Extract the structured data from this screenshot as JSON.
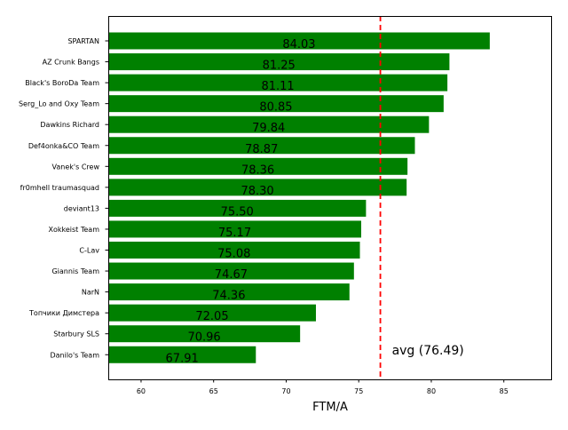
{
  "chart_data": {
    "type": "bar",
    "orientation": "horizontal",
    "categories": [
      "SPARTAN",
      "AZ Crunk Bangs",
      "Black's BoroDa Team",
      "Serg_Lo and Oxy Team",
      "Dawkins Richard",
      "Def4onka&CO Team",
      "Vanek's Crew",
      "fr0mhell traumasquad",
      "deviant13",
      "Xokkeist Team",
      "C-Lav",
      "Giannis Team",
      "NarN",
      "Топчики Димстера",
      "Starbury SLS",
      "Danilo's Team"
    ],
    "values": [
      84.03,
      81.25,
      81.11,
      80.85,
      79.84,
      78.87,
      78.36,
      78.3,
      75.5,
      75.17,
      75.08,
      74.67,
      74.36,
      72.05,
      70.96,
      67.91
    ],
    "data_labels": [
      "84.03",
      "81.25",
      "81.11",
      "80.85",
      "79.84",
      "78.87",
      "78.36",
      "78.30",
      "75.50",
      "75.17",
      "75.08",
      "74.67",
      "74.36",
      "72.05",
      "70.96",
      "67.91"
    ],
    "xlabel": "FTM/A",
    "ylabel": "",
    "xlim": [
      57.74,
      88.32
    ],
    "xticks": [
      60,
      65,
      70,
      75,
      80,
      85
    ],
    "xtick_labels": [
      "60",
      "65",
      "70",
      "75",
      "80",
      "85"
    ],
    "grid": false,
    "bar_color": "#008000",
    "reference_line": {
      "value": 76.49,
      "label": "avg (76.49)",
      "color": "#ff0000",
      "style": "dashed"
    }
  }
}
